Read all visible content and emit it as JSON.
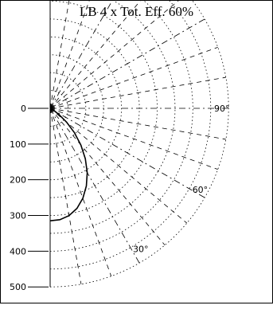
{
  "title": "LB 4 x Tot. Eff. 60%",
  "chart_data": {
    "type": "polar",
    "title": "LB 4 x Tot. Eff. 60%",
    "radial_axis": {
      "ticks": [
        0,
        100,
        200,
        300,
        400,
        500
      ],
      "tick_labels": [
        "0",
        "100",
        "200",
        "300",
        "400",
        "500"
      ],
      "range": [
        0,
        500
      ]
    },
    "angular_axis": {
      "range_deg": [
        0,
        180
      ],
      "labeled_angles": [
        30,
        60,
        90
      ],
      "angle_labels": [
        "30°",
        "60°",
        "90°"
      ]
    },
    "grid": true,
    "series": [
      {
        "angles_deg": [
          0,
          5,
          10,
          15,
          20,
          25,
          30,
          35,
          40,
          45,
          50,
          55,
          60,
          65,
          70,
          75,
          80,
          85,
          90
        ],
        "values": [
          315,
          313,
          305,
          290,
          268,
          240,
          208,
          172,
          134,
          96,
          60,
          30,
          12,
          5,
          2,
          0,
          0,
          0,
          0
        ]
      }
    ],
    "colors": {
      "curve": "#000000",
      "grid": "#000000",
      "background": "#ffffff"
    }
  }
}
